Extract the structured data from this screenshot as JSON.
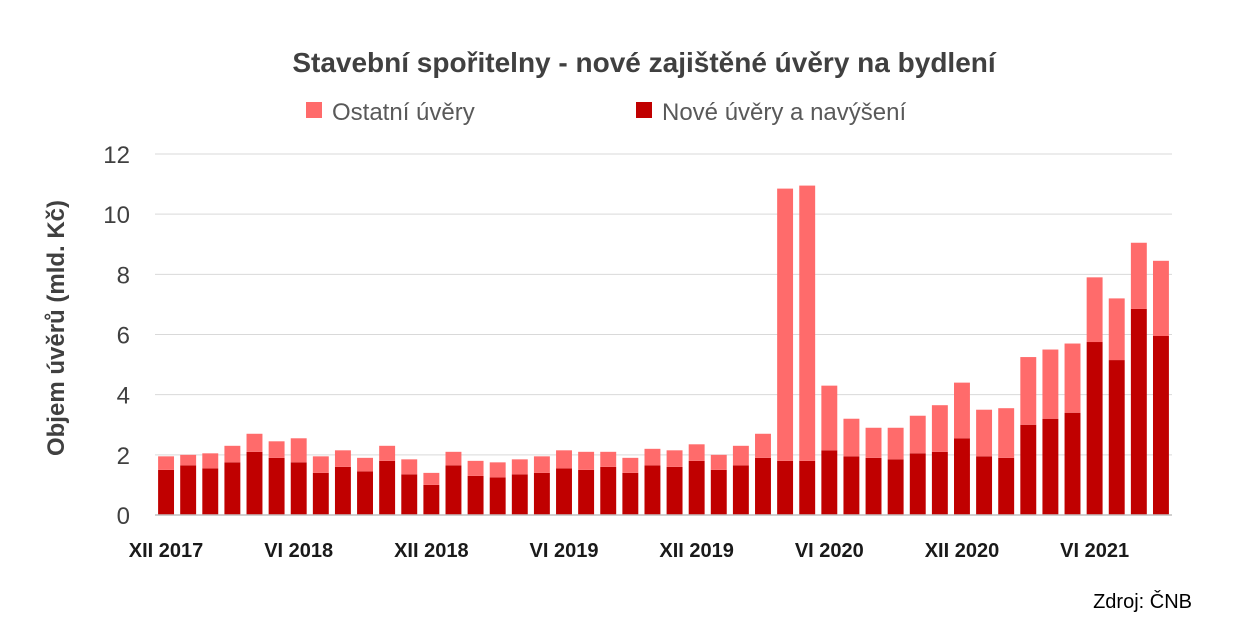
{
  "chart_data": {
    "type": "bar",
    "stacked": true,
    "title": "Stavební spořitelny - nové zajištěné úvěry na bydlení",
    "ylabel": "Objem úvěrů (mld. Kč)",
    "xlabel": "",
    "ylim": [
      0,
      12
    ],
    "yticks": [
      0,
      2,
      4,
      6,
      8,
      10,
      12
    ],
    "grid": true,
    "legend_position": "top",
    "x_tick_labels": [
      {
        "index": 0,
        "label": "XII 2017"
      },
      {
        "index": 6,
        "label": "VI 2018"
      },
      {
        "index": 12,
        "label": "XII 2018"
      },
      {
        "index": 18,
        "label": "VI 2019"
      },
      {
        "index": 24,
        "label": "XII 2019"
      },
      {
        "index": 30,
        "label": "VI 2020"
      },
      {
        "index": 36,
        "label": "XII 2020"
      },
      {
        "index": 42,
        "label": "VI 2021"
      }
    ],
    "series": [
      {
        "name": "Nové úvěry a navýšení",
        "color": "#c00000",
        "values": [
          1.5,
          1.65,
          1.55,
          1.75,
          2.1,
          1.9,
          1.75,
          1.4,
          1.6,
          1.45,
          1.8,
          1.35,
          1.0,
          1.65,
          1.3,
          1.25,
          1.35,
          1.4,
          1.55,
          1.5,
          1.6,
          1.4,
          1.65,
          1.6,
          1.8,
          1.5,
          1.65,
          1.9,
          1.8,
          1.8,
          2.15,
          1.95,
          1.9,
          1.85,
          2.05,
          2.1,
          2.55,
          1.95,
          1.9,
          3.0,
          3.2,
          3.4,
          5.75,
          5.15,
          6.85,
          5.95
        ]
      },
      {
        "name": "Ostatní úvěry",
        "color": "#ff6b6b",
        "values": [
          0.45,
          0.35,
          0.5,
          0.55,
          0.6,
          0.55,
          0.8,
          0.55,
          0.55,
          0.45,
          0.5,
          0.5,
          0.4,
          0.45,
          0.5,
          0.5,
          0.5,
          0.55,
          0.6,
          0.6,
          0.5,
          0.5,
          0.55,
          0.55,
          0.55,
          0.5,
          0.65,
          0.8,
          9.05,
          9.15,
          2.15,
          1.25,
          1.0,
          1.05,
          1.25,
          1.55,
          1.85,
          1.55,
          1.65,
          2.25,
          2.3,
          2.3,
          2.15,
          2.05,
          2.2,
          2.5
        ]
      }
    ]
  },
  "legend": [
    {
      "label": "Ostatní úvěry",
      "color": "#ff6b6b"
    },
    {
      "label": "Nové úvěry a navýšení",
      "color": "#c00000"
    }
  ],
  "source": "Zdroj: ČNB"
}
